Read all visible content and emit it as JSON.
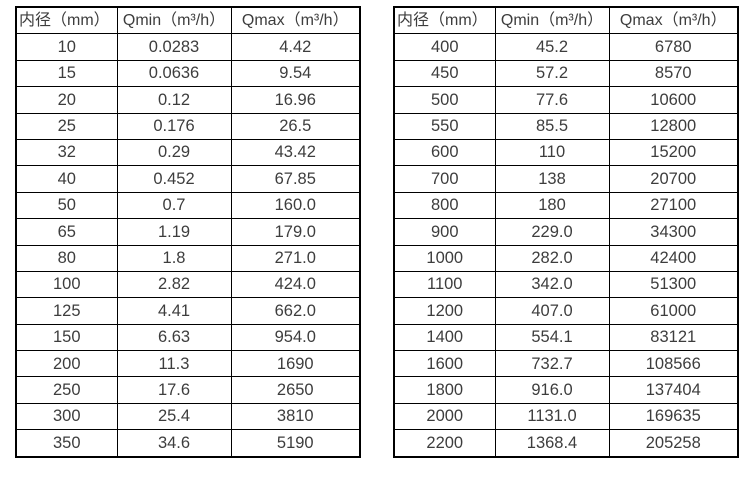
{
  "page": {
    "background_color": "#ffffff",
    "text_color": "#3d3d3d",
    "border_color": "#000000"
  },
  "tables": [
    {
      "name": "flow-spec-table-small-diameters",
      "headers": [
        "内径（mm）",
        "Qmin（m³/h）",
        "Qmax（m³/h）"
      ],
      "rows": [
        [
          "10",
          "0.0283",
          "4.42"
        ],
        [
          "15",
          "0.0636",
          "9.54"
        ],
        [
          "20",
          "0.12",
          "16.96"
        ],
        [
          "25",
          "0.176",
          "26.5"
        ],
        [
          "32",
          "0.29",
          "43.42"
        ],
        [
          "40",
          "0.452",
          "67.85"
        ],
        [
          "50",
          "0.7",
          "160.0"
        ],
        [
          "65",
          "1.19",
          "179.0"
        ],
        [
          "80",
          "1.8",
          "271.0"
        ],
        [
          "100",
          "2.82",
          "424.0"
        ],
        [
          "125",
          "4.41",
          "662.0"
        ],
        [
          "150",
          "6.63",
          "954.0"
        ],
        [
          "200",
          "11.3",
          "1690"
        ],
        [
          "250",
          "17.6",
          "2650"
        ],
        [
          "300",
          "25.4",
          "3810"
        ],
        [
          "350",
          "34.6",
          "5190"
        ]
      ]
    },
    {
      "name": "flow-spec-table-large-diameters",
      "headers": [
        "内径（mm）",
        "Qmin（m³/h）",
        "Qmax（m³/h）"
      ],
      "rows": [
        [
          "400",
          "45.2",
          "6780"
        ],
        [
          "450",
          "57.2",
          "8570"
        ],
        [
          "500",
          "77.6",
          "10600"
        ],
        [
          "550",
          "85.5",
          "12800"
        ],
        [
          "600",
          "110",
          "15200"
        ],
        [
          "700",
          "138",
          "20700"
        ],
        [
          "800",
          "180",
          "27100"
        ],
        [
          "900",
          "229.0",
          "34300"
        ],
        [
          "1000",
          "282.0",
          "42400"
        ],
        [
          "1100",
          "342.0",
          "51300"
        ],
        [
          "1200",
          "407.0",
          "61000"
        ],
        [
          "1400",
          "554.1",
          "83121"
        ],
        [
          "1600",
          "732.7",
          "108566"
        ],
        [
          "1800",
          "916.0",
          "137404"
        ],
        [
          "2000",
          "1131.0",
          "169635"
        ],
        [
          "2200",
          "1368.4",
          "205258"
        ]
      ]
    }
  ]
}
